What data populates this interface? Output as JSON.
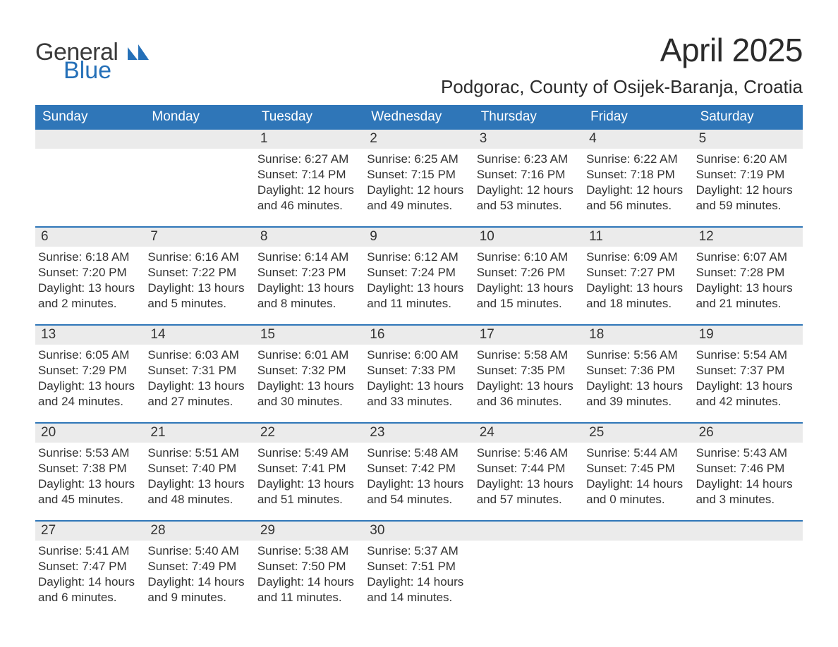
{
  "brand": {
    "text_general": "General",
    "text_blue": "Blue",
    "text_color": "#3a3a3a",
    "blue_color": "#2570b8",
    "icon_color": "#2570b8"
  },
  "header": {
    "month_title": "April 2025",
    "location": "Podgorac, County of Osijek-Baranja, Croatia",
    "title_fontsize": 46,
    "location_fontsize": 26,
    "title_color": "#2b2b2b"
  },
  "calendar": {
    "type": "table",
    "header_bg": "#2f76b8",
    "header_fg": "#ffffff",
    "daynum_bg": "#ebebeb",
    "sep_color": "#2f76b8",
    "text_color": "#3a3a3a",
    "body_fontsize": 17,
    "head_fontsize": 19,
    "columns": [
      "Sunday",
      "Monday",
      "Tuesday",
      "Wednesday",
      "Thursday",
      "Friday",
      "Saturday"
    ],
    "weeks": [
      [
        {
          "num": "",
          "sunrise": "",
          "sunset": "",
          "daylight": ""
        },
        {
          "num": "",
          "sunrise": "",
          "sunset": "",
          "daylight": ""
        },
        {
          "num": "1",
          "sunrise": "Sunrise: 6:27 AM",
          "sunset": "Sunset: 7:14 PM",
          "daylight": "Daylight: 12 hours and 46 minutes."
        },
        {
          "num": "2",
          "sunrise": "Sunrise: 6:25 AM",
          "sunset": "Sunset: 7:15 PM",
          "daylight": "Daylight: 12 hours and 49 minutes."
        },
        {
          "num": "3",
          "sunrise": "Sunrise: 6:23 AM",
          "sunset": "Sunset: 7:16 PM",
          "daylight": "Daylight: 12 hours and 53 minutes."
        },
        {
          "num": "4",
          "sunrise": "Sunrise: 6:22 AM",
          "sunset": "Sunset: 7:18 PM",
          "daylight": "Daylight: 12 hours and 56 minutes."
        },
        {
          "num": "5",
          "sunrise": "Sunrise: 6:20 AM",
          "sunset": "Sunset: 7:19 PM",
          "daylight": "Daylight: 12 hours and 59 minutes."
        }
      ],
      [
        {
          "num": "6",
          "sunrise": "Sunrise: 6:18 AM",
          "sunset": "Sunset: 7:20 PM",
          "daylight": "Daylight: 13 hours and 2 minutes."
        },
        {
          "num": "7",
          "sunrise": "Sunrise: 6:16 AM",
          "sunset": "Sunset: 7:22 PM",
          "daylight": "Daylight: 13 hours and 5 minutes."
        },
        {
          "num": "8",
          "sunrise": "Sunrise: 6:14 AM",
          "sunset": "Sunset: 7:23 PM",
          "daylight": "Daylight: 13 hours and 8 minutes."
        },
        {
          "num": "9",
          "sunrise": "Sunrise: 6:12 AM",
          "sunset": "Sunset: 7:24 PM",
          "daylight": "Daylight: 13 hours and 11 minutes."
        },
        {
          "num": "10",
          "sunrise": "Sunrise: 6:10 AM",
          "sunset": "Sunset: 7:26 PM",
          "daylight": "Daylight: 13 hours and 15 minutes."
        },
        {
          "num": "11",
          "sunrise": "Sunrise: 6:09 AM",
          "sunset": "Sunset: 7:27 PM",
          "daylight": "Daylight: 13 hours and 18 minutes."
        },
        {
          "num": "12",
          "sunrise": "Sunrise: 6:07 AM",
          "sunset": "Sunset: 7:28 PM",
          "daylight": "Daylight: 13 hours and 21 minutes."
        }
      ],
      [
        {
          "num": "13",
          "sunrise": "Sunrise: 6:05 AM",
          "sunset": "Sunset: 7:29 PM",
          "daylight": "Daylight: 13 hours and 24 minutes."
        },
        {
          "num": "14",
          "sunrise": "Sunrise: 6:03 AM",
          "sunset": "Sunset: 7:31 PM",
          "daylight": "Daylight: 13 hours and 27 minutes."
        },
        {
          "num": "15",
          "sunrise": "Sunrise: 6:01 AM",
          "sunset": "Sunset: 7:32 PM",
          "daylight": "Daylight: 13 hours and 30 minutes."
        },
        {
          "num": "16",
          "sunrise": "Sunrise: 6:00 AM",
          "sunset": "Sunset: 7:33 PM",
          "daylight": "Daylight: 13 hours and 33 minutes."
        },
        {
          "num": "17",
          "sunrise": "Sunrise: 5:58 AM",
          "sunset": "Sunset: 7:35 PM",
          "daylight": "Daylight: 13 hours and 36 minutes."
        },
        {
          "num": "18",
          "sunrise": "Sunrise: 5:56 AM",
          "sunset": "Sunset: 7:36 PM",
          "daylight": "Daylight: 13 hours and 39 minutes."
        },
        {
          "num": "19",
          "sunrise": "Sunrise: 5:54 AM",
          "sunset": "Sunset: 7:37 PM",
          "daylight": "Daylight: 13 hours and 42 minutes."
        }
      ],
      [
        {
          "num": "20",
          "sunrise": "Sunrise: 5:53 AM",
          "sunset": "Sunset: 7:38 PM",
          "daylight": "Daylight: 13 hours and 45 minutes."
        },
        {
          "num": "21",
          "sunrise": "Sunrise: 5:51 AM",
          "sunset": "Sunset: 7:40 PM",
          "daylight": "Daylight: 13 hours and 48 minutes."
        },
        {
          "num": "22",
          "sunrise": "Sunrise: 5:49 AM",
          "sunset": "Sunset: 7:41 PM",
          "daylight": "Daylight: 13 hours and 51 minutes."
        },
        {
          "num": "23",
          "sunrise": "Sunrise: 5:48 AM",
          "sunset": "Sunset: 7:42 PM",
          "daylight": "Daylight: 13 hours and 54 minutes."
        },
        {
          "num": "24",
          "sunrise": "Sunrise: 5:46 AM",
          "sunset": "Sunset: 7:44 PM",
          "daylight": "Daylight: 13 hours and 57 minutes."
        },
        {
          "num": "25",
          "sunrise": "Sunrise: 5:44 AM",
          "sunset": "Sunset: 7:45 PM",
          "daylight": "Daylight: 14 hours and 0 minutes."
        },
        {
          "num": "26",
          "sunrise": "Sunrise: 5:43 AM",
          "sunset": "Sunset: 7:46 PM",
          "daylight": "Daylight: 14 hours and 3 minutes."
        }
      ],
      [
        {
          "num": "27",
          "sunrise": "Sunrise: 5:41 AM",
          "sunset": "Sunset: 7:47 PM",
          "daylight": "Daylight: 14 hours and 6 minutes."
        },
        {
          "num": "28",
          "sunrise": "Sunrise: 5:40 AM",
          "sunset": "Sunset: 7:49 PM",
          "daylight": "Daylight: 14 hours and 9 minutes."
        },
        {
          "num": "29",
          "sunrise": "Sunrise: 5:38 AM",
          "sunset": "Sunset: 7:50 PM",
          "daylight": "Daylight: 14 hours and 11 minutes."
        },
        {
          "num": "30",
          "sunrise": "Sunrise: 5:37 AM",
          "sunset": "Sunset: 7:51 PM",
          "daylight": "Daylight: 14 hours and 14 minutes."
        },
        {
          "num": "",
          "sunrise": "",
          "sunset": "",
          "daylight": ""
        },
        {
          "num": "",
          "sunrise": "",
          "sunset": "",
          "daylight": ""
        },
        {
          "num": "",
          "sunrise": "",
          "sunset": "",
          "daylight": ""
        }
      ]
    ]
  }
}
